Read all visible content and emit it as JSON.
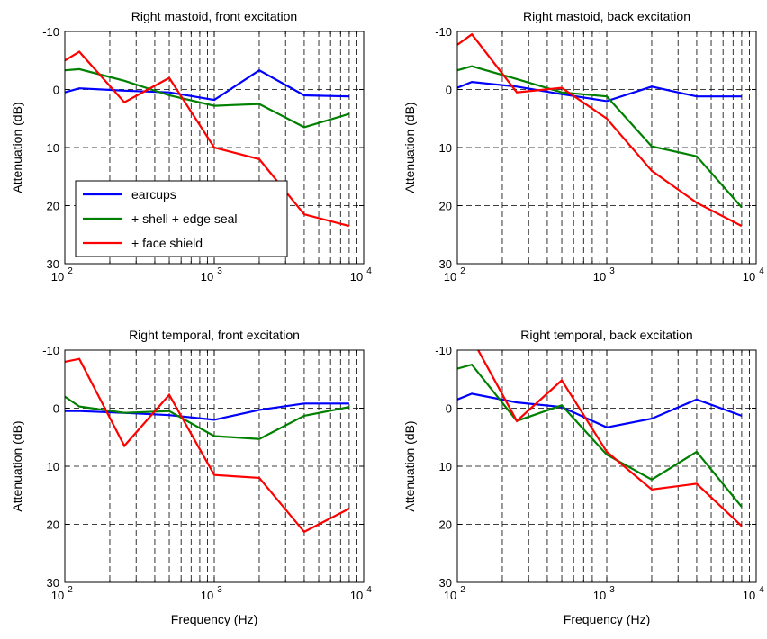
{
  "figure": {
    "background": "#ffffff"
  },
  "chart_data": [
    {
      "type": "line",
      "title": "Right mastoid, front excitation",
      "xlabel": "",
      "ylabel": "Attenuation (dB)",
      "xscale": "log",
      "xlim": [
        100,
        10000
      ],
      "ylim": [
        30,
        -10
      ],
      "yticks": [
        "-10",
        "0",
        "10",
        "20",
        "30"
      ],
      "xticks": [
        {
          "base": "10",
          "exp": "2"
        },
        {
          "base": "10",
          "exp": "3"
        },
        {
          "base": "10",
          "exp": "4"
        }
      ],
      "grid": true,
      "legend": {
        "placement": "lower-left",
        "entries": [
          "earcups",
          "+ shell + edge seal",
          "+ face shield"
        ]
      },
      "x": [
        100,
        125,
        250,
        500,
        1000,
        2000,
        4000,
        8000
      ],
      "series": [
        {
          "name": "earcups",
          "color": "#0000ff",
          "values": [
            0.5,
            -0.2,
            0.2,
            0.5,
            1.8,
            -3.3,
            1.0,
            1.2
          ]
        },
        {
          "name": "+ shell + edge seal",
          "color": "#008000",
          "values": [
            -3.3,
            -3.5,
            -1.5,
            1.0,
            2.8,
            2.5,
            6.5,
            4.2
          ]
        },
        {
          "name": "+ face shield",
          "color": "#ff0000",
          "values": [
            -5.0,
            -6.5,
            2.2,
            -2.0,
            10.0,
            12.0,
            21.5,
            23.5
          ]
        }
      ]
    },
    {
      "type": "line",
      "title": "Right mastoid, back excitation",
      "xlabel": "",
      "ylabel": "Attenuation (dB)",
      "xscale": "log",
      "xlim": [
        100,
        10000
      ],
      "ylim": [
        30,
        -10
      ],
      "yticks": [
        "-10",
        "0",
        "10",
        "20",
        "30"
      ],
      "xticks": [
        {
          "base": "10",
          "exp": "2"
        },
        {
          "base": "10",
          "exp": "3"
        },
        {
          "base": "10",
          "exp": "4"
        }
      ],
      "grid": true,
      "x": [
        100,
        125,
        250,
        500,
        1000,
        2000,
        4000,
        8000
      ],
      "series": [
        {
          "name": "earcups",
          "color": "#0000ff",
          "values": [
            -0.3,
            -1.3,
            -0.5,
            0.8,
            2.0,
            -0.5,
            1.2,
            1.2
          ]
        },
        {
          "name": "+ shell + edge seal",
          "color": "#008000",
          "values": [
            -3.3,
            -4.0,
            -1.8,
            0.5,
            1.2,
            9.8,
            11.5,
            20.3
          ]
        },
        {
          "name": "+ face shield",
          "color": "#ff0000",
          "values": [
            -7.7,
            -9.5,
            0.5,
            -0.3,
            5.0,
            14.0,
            19.5,
            23.5
          ]
        }
      ]
    },
    {
      "type": "line",
      "title": "Right temporal, front excitation",
      "xlabel": "Frequency (Hz)",
      "ylabel": "Attenuation (dB)",
      "xscale": "log",
      "xlim": [
        100,
        10000
      ],
      "ylim": [
        30,
        -10
      ],
      "yticks": [
        "-10",
        "0",
        "10",
        "20",
        "30"
      ],
      "xticks": [
        {
          "base": "10",
          "exp": "2"
        },
        {
          "base": "10",
          "exp": "3"
        },
        {
          "base": "10",
          "exp": "4"
        }
      ],
      "grid": true,
      "x": [
        100,
        125,
        250,
        500,
        1000,
        2000,
        4000,
        8000
      ],
      "series": [
        {
          "name": "earcups",
          "color": "#0000ff",
          "values": [
            0.5,
            0.5,
            0.8,
            1.2,
            2.0,
            0.3,
            -0.8,
            -0.8
          ]
        },
        {
          "name": "+ shell + edge seal",
          "color": "#008000",
          "values": [
            -2.0,
            -0.3,
            0.8,
            0.5,
            4.8,
            5.3,
            1.3,
            -0.2
          ]
        },
        {
          "name": "+ face shield",
          "color": "#ff0000",
          "values": [
            -8.0,
            -8.5,
            6.5,
            -2.3,
            11.5,
            12.0,
            21.3,
            17.3
          ]
        }
      ]
    },
    {
      "type": "line",
      "title": "Right temporal, back excitation",
      "xlabel": "Frequency (Hz)",
      "ylabel": "Attenuation (dB)",
      "xscale": "log",
      "xlim": [
        100,
        10000
      ],
      "ylim": [
        30,
        -10
      ],
      "yticks": [
        "-10",
        "0",
        "10",
        "20",
        "30"
      ],
      "xticks": [
        {
          "base": "10",
          "exp": "2"
        },
        {
          "base": "10",
          "exp": "3"
        },
        {
          "base": "10",
          "exp": "4"
        }
      ],
      "grid": true,
      "x": [
        100,
        125,
        250,
        500,
        1000,
        2000,
        4000,
        8000
      ],
      "series": [
        {
          "name": "earcups",
          "color": "#0000ff",
          "values": [
            -1.5,
            -2.5,
            -1.0,
            -0.2,
            3.3,
            1.8,
            -1.5,
            1.3
          ]
        },
        {
          "name": "+ shell + edge seal",
          "color": "#008000",
          "values": [
            -6.8,
            -7.5,
            2.2,
            -0.5,
            8.0,
            12.3,
            7.5,
            17.0
          ]
        },
        {
          "name": "+ face shield",
          "color": "#ff0000",
          "values": [
            -13.0,
            -12.0,
            2.2,
            -4.8,
            7.5,
            14.0,
            13.0,
            20.3
          ]
        }
      ]
    }
  ]
}
